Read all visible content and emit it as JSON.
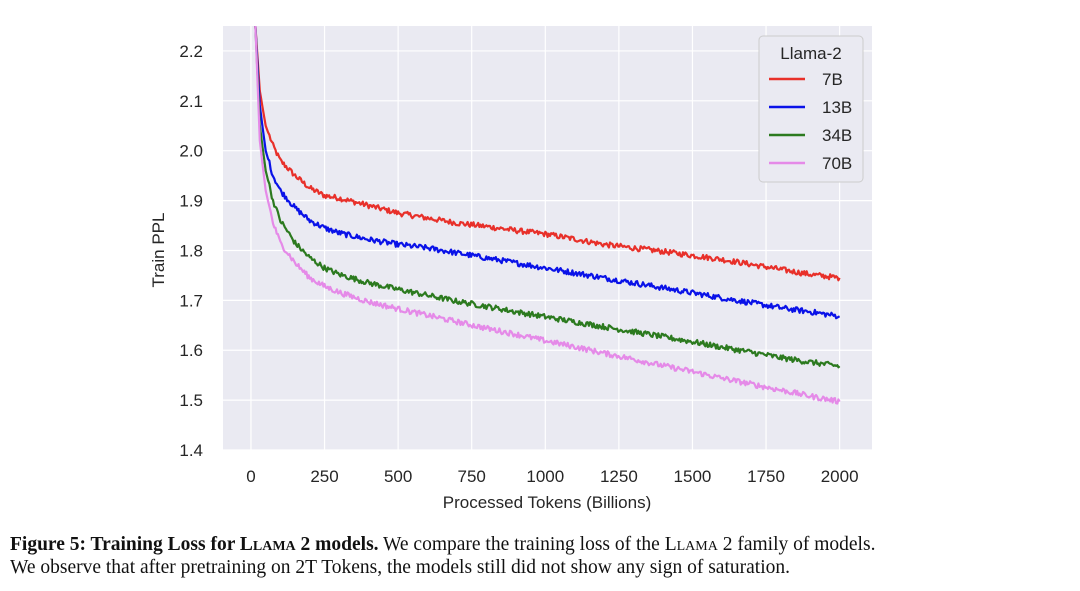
{
  "chart_data": {
    "type": "line",
    "xlabel": "Processed Tokens (Billions)",
    "ylabel": "Train PPL",
    "xlim": [
      -95,
      2110
    ],
    "ylim": [
      1.4,
      2.25
    ],
    "xticks": [
      0,
      250,
      500,
      750,
      1000,
      1250,
      1500,
      1750,
      2000
    ],
    "yticks": [
      1.4,
      1.5,
      1.6,
      1.7,
      1.8,
      1.9,
      2.0,
      2.1,
      2.2
    ],
    "xtick_labels": [
      "0",
      "250",
      "500",
      "750",
      "1000",
      "1250",
      "1500",
      "1750",
      "2000"
    ],
    "ytick_labels": [
      "1.4",
      "1.5",
      "1.6",
      "1.7",
      "1.8",
      "1.9",
      "2.0",
      "2.1",
      "2.2"
    ],
    "grid": true,
    "legend": {
      "title": "Llama-2",
      "placement": "top-right"
    },
    "series": [
      {
        "name": "7B",
        "color": "#e8302a",
        "x": [
          15,
          30,
          50,
          75,
          100,
          150,
          200,
          250,
          300,
          400,
          500,
          600,
          700,
          800,
          900,
          1000,
          1100,
          1200,
          1300,
          1400,
          1500,
          1600,
          1700,
          1800,
          1900,
          2000
        ],
        "y": [
          2.25,
          2.12,
          2.05,
          2.01,
          1.98,
          1.95,
          1.925,
          1.91,
          1.905,
          1.89,
          1.875,
          1.865,
          1.855,
          1.848,
          1.84,
          1.833,
          1.823,
          1.812,
          1.805,
          1.798,
          1.79,
          1.782,
          1.772,
          1.762,
          1.752,
          1.745
        ]
      },
      {
        "name": "13B",
        "color": "#0a12e8",
        "x": [
          15,
          30,
          50,
          75,
          100,
          150,
          200,
          250,
          300,
          400,
          500,
          600,
          700,
          800,
          900,
          1000,
          1100,
          1200,
          1300,
          1400,
          1500,
          1600,
          1700,
          1800,
          1900,
          2000
        ],
        "y": [
          2.25,
          2.09,
          2.0,
          1.95,
          1.92,
          1.885,
          1.86,
          1.845,
          1.835,
          1.822,
          1.812,
          1.805,
          1.795,
          1.785,
          1.775,
          1.765,
          1.755,
          1.745,
          1.735,
          1.725,
          1.715,
          1.705,
          1.695,
          1.685,
          1.677,
          1.668
        ]
      },
      {
        "name": "34B",
        "color": "#2c7a1f",
        "x": [
          15,
          30,
          50,
          75,
          100,
          150,
          200,
          250,
          300,
          400,
          500,
          600,
          700,
          800,
          900,
          1000,
          1100,
          1200,
          1300,
          1400,
          1500,
          1600,
          1700,
          1800,
          1900,
          2000
        ],
        "y": [
          2.25,
          2.05,
          1.96,
          1.9,
          1.86,
          1.815,
          1.785,
          1.765,
          1.752,
          1.735,
          1.722,
          1.71,
          1.698,
          1.688,
          1.677,
          1.667,
          1.657,
          1.647,
          1.637,
          1.627,
          1.617,
          1.606,
          1.596,
          1.585,
          1.576,
          1.568
        ]
      },
      {
        "name": "70B",
        "color": "#e58ae8",
        "x": [
          15,
          30,
          50,
          75,
          100,
          150,
          200,
          250,
          300,
          400,
          500,
          600,
          700,
          800,
          900,
          1000,
          1100,
          1200,
          1300,
          1400,
          1500,
          1600,
          1700,
          1800,
          1900,
          2000
        ],
        "y": [
          2.25,
          2.02,
          1.92,
          1.855,
          1.815,
          1.775,
          1.745,
          1.728,
          1.716,
          1.697,
          1.683,
          1.67,
          1.657,
          1.644,
          1.632,
          1.619,
          1.607,
          1.594,
          1.582,
          1.569,
          1.557,
          1.544,
          1.532,
          1.52,
          1.508,
          1.497
        ]
      }
    ]
  },
  "caption": {
    "label": "Figure 5: Training Loss for ",
    "model_name": "Llama 2",
    "label_end": " models.",
    "text_1": " We compare the training loss of the ",
    "model_name_2": "Llama 2",
    "text_2": " family of models.",
    "line2": "We observe that after pretraining on 2T Tokens, the models still did not show any sign of saturation."
  }
}
